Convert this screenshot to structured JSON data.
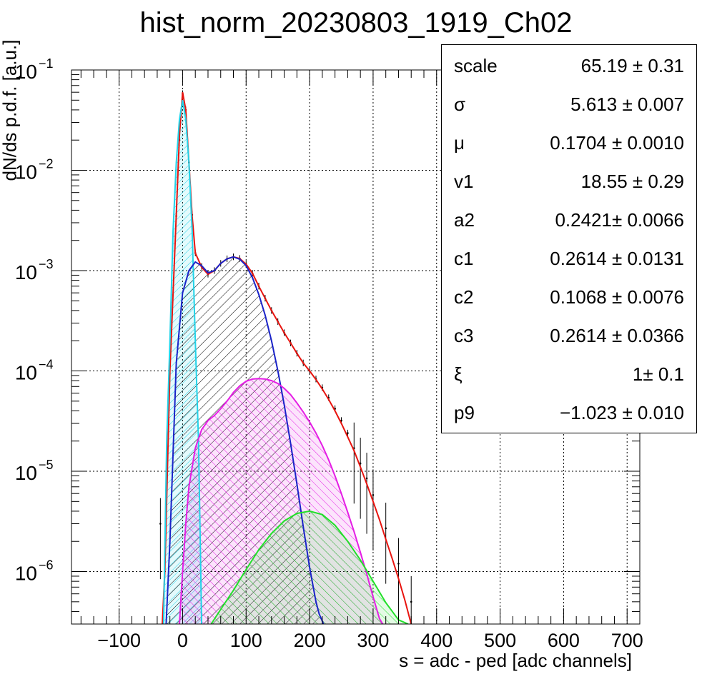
{
  "chart_data": {
    "type": "line",
    "title": "hist_norm_20230803_1919_Ch02",
    "xlabel": "s = adc - ped [adc channels]",
    "ylabel": "dN/ds p.d.f. [a.u.]",
    "xlim": [
      -175,
      720
    ],
    "ylim": [
      3e-07,
      0.1
    ],
    "yscale": "log",
    "grid": true,
    "x_ticks": [
      -100,
      0,
      100,
      200,
      300,
      400,
      500,
      600,
      700
    ],
    "x_tick_labels": [
      "−100",
      "0",
      "100",
      "200",
      "300",
      "400",
      "500",
      "600",
      "700"
    ],
    "y_tick_labels": [
      {
        "base": "10",
        "exp": "−1"
      },
      {
        "base": "10",
        "exp": "−2"
      },
      {
        "base": "10",
        "exp": "−3"
      },
      {
        "base": "10",
        "exp": "−4"
      },
      {
        "base": "10",
        "exp": "−5"
      },
      {
        "base": "10",
        "exp": "−6"
      }
    ],
    "series": [
      {
        "color": "#000000",
        "style": "histogram-errors",
        "x": [
          -35,
          -20,
          -10,
          -5,
          0,
          5,
          10,
          15,
          20,
          30,
          40,
          50,
          60,
          70,
          80,
          90,
          100,
          110,
          120,
          130,
          140,
          150,
          160,
          170,
          180,
          190,
          200,
          210,
          220,
          230,
          240,
          250,
          260,
          270,
          280,
          290,
          300,
          320,
          340,
          360
        ],
        "y": [
          3e-06,
          0.00012,
          0.0035,
          0.02,
          0.058,
          0.04,
          0.012,
          0.0036,
          0.0015,
          0.0011,
          0.00092,
          0.001,
          0.00118,
          0.00131,
          0.00137,
          0.00132,
          0.00116,
          0.00094,
          0.0007,
          0.00053,
          0.0004,
          0.00031,
          0.00024,
          0.00019,
          0.00015,
          0.00012,
          0.0001,
          8.3e-05,
          6.8e-05,
          5.4e-05,
          4.2e-05,
          3.2e-05,
          2.4e-05,
          1.7e-05,
          1.2e-05,
          8.5e-06,
          5.8e-06,
          2.7e-06,
          1.2e-06,
          5e-07
        ]
      },
      {
        "color": "#e8140f",
        "style": "line",
        "x": [
          -32,
          -28,
          -20,
          -10,
          -5,
          0,
          5,
          10,
          15,
          20,
          30,
          40,
          50,
          60,
          70,
          80,
          90,
          100,
          110,
          120,
          130,
          140,
          150,
          160,
          170,
          180,
          190,
          200,
          210,
          220,
          230,
          240,
          250,
          260,
          270,
          280,
          290,
          300,
          310,
          320,
          330,
          340,
          350,
          360
        ],
        "y": [
          3e-07,
          1e-06,
          0.0001,
          0.0036,
          0.022,
          0.06,
          0.04,
          0.012,
          0.0035,
          0.0015,
          0.00108,
          0.00092,
          0.001,
          0.00118,
          0.00131,
          0.00137,
          0.00132,
          0.00116,
          0.00094,
          0.0007,
          0.00053,
          0.0004,
          0.00031,
          0.00024,
          0.00019,
          0.00015,
          0.00012,
          0.0001,
          8.2e-05,
          6.6e-05,
          5.2e-05,
          4e-05,
          3e-05,
          2.2e-05,
          1.6e-05,
          1.1e-05,
          7.5e-06,
          5e-06,
          3.3e-06,
          2.1e-06,
          1.35e-06,
          8.5e-07,
          5.2e-07,
          3e-07
        ]
      },
      {
        "color": "#22d3e8",
        "style": "filled-hatched",
        "x": [
          -30,
          -25,
          -20,
          -15,
          -10,
          -5,
          0,
          5,
          10,
          15,
          20,
          25,
          30
        ],
        "y": [
          3e-07,
          2e-05,
          0.0002,
          0.0025,
          0.012,
          0.032,
          0.05,
          0.032,
          0.012,
          0.0025,
          0.0002,
          2e-05,
          3e-07
        ]
      },
      {
        "color": "#1a23c8",
        "style": "filled-hatched",
        "x": [
          -26,
          -20,
          -10,
          0,
          10,
          20,
          30,
          40,
          50,
          60,
          70,
          80,
          90,
          100,
          110,
          120,
          130,
          140,
          150,
          160,
          170,
          180,
          190,
          200,
          210,
          215,
          222
        ],
        "y": [
          3e-07,
          2e-06,
          0.00012,
          0.0006,
          0.001,
          0.00122,
          0.00112,
          0.00095,
          0.001,
          0.00118,
          0.00131,
          0.00137,
          0.0013,
          0.00112,
          0.00085,
          0.00058,
          0.00036,
          0.0002,
          0.0001,
          4.6e-05,
          1.9e-05,
          7.5e-06,
          2.8e-06,
          1.1e-06,
          5e-07,
          3.8e-07,
          3e-07
        ]
      },
      {
        "color": "#e41ee4",
        "style": "filled-hatched",
        "x": [
          -5,
          0,
          5,
          10,
          20,
          30,
          40,
          50,
          60,
          70,
          80,
          90,
          100,
          110,
          120,
          130,
          140,
          150,
          160,
          170,
          180,
          190,
          200,
          210,
          220,
          230,
          240,
          250,
          260,
          270,
          280,
          290,
          300,
          310,
          315
        ],
        "y": [
          3e-07,
          1e-06,
          3e-06,
          7e-06,
          1.7e-05,
          2.6e-05,
          3.2e-05,
          3.6e-05,
          4.2e-05,
          5e-05,
          6.1e-05,
          7.1e-05,
          7.9e-05,
          8.3e-05,
          8.4e-05,
          8.3e-05,
          8e-05,
          7.5e-05,
          6.7e-05,
          5.8e-05,
          4.8e-05,
          3.9e-05,
          3.1e-05,
          2.4e-05,
          1.8e-05,
          1.3e-05,
          9e-06,
          6e-06,
          3.9e-06,
          2.5e-06,
          1.55e-06,
          9.5e-07,
          5.6e-07,
          3.4e-07,
          3e-07
        ]
      },
      {
        "color": "#22e02a",
        "style": "filled-hatched",
        "x": [
          45,
          60,
          80,
          100,
          120,
          140,
          160,
          180,
          200,
          220,
          240,
          260,
          280,
          300,
          320,
          340,
          355
        ],
        "y": [
          3e-07,
          4.2e-07,
          6.5e-07,
          1.05e-06,
          1.65e-06,
          2.4e-06,
          3.2e-06,
          3.8e-06,
          4e-06,
          3.7e-06,
          2.9e-06,
          2e-06,
          1.3e-06,
          8e-07,
          4.9e-07,
          3.3e-07,
          3e-07
        ]
      }
    ]
  },
  "stats": [
    {
      "name": "scale",
      "value": "65.19 ± 0.31"
    },
    {
      "name": "σ",
      "value": "5.613 ± 0.007"
    },
    {
      "name": "μ",
      "value": "0.1704 ± 0.0010"
    },
    {
      "name": "v1",
      "value": "18.55 ± 0.29"
    },
    {
      "name": "a2",
      "value": "0.2421± 0.0066"
    },
    {
      "name": "c1",
      "value": "0.2614 ± 0.0131"
    },
    {
      "name": "c2",
      "value": "0.1068 ± 0.0076"
    },
    {
      "name": "c3",
      "value": "0.2614 ± 0.0366"
    },
    {
      "name": "ξ",
      "value": "1± 0.1"
    },
    {
      "name": "p9",
      "value": "−1.023 ± 0.010"
    }
  ]
}
